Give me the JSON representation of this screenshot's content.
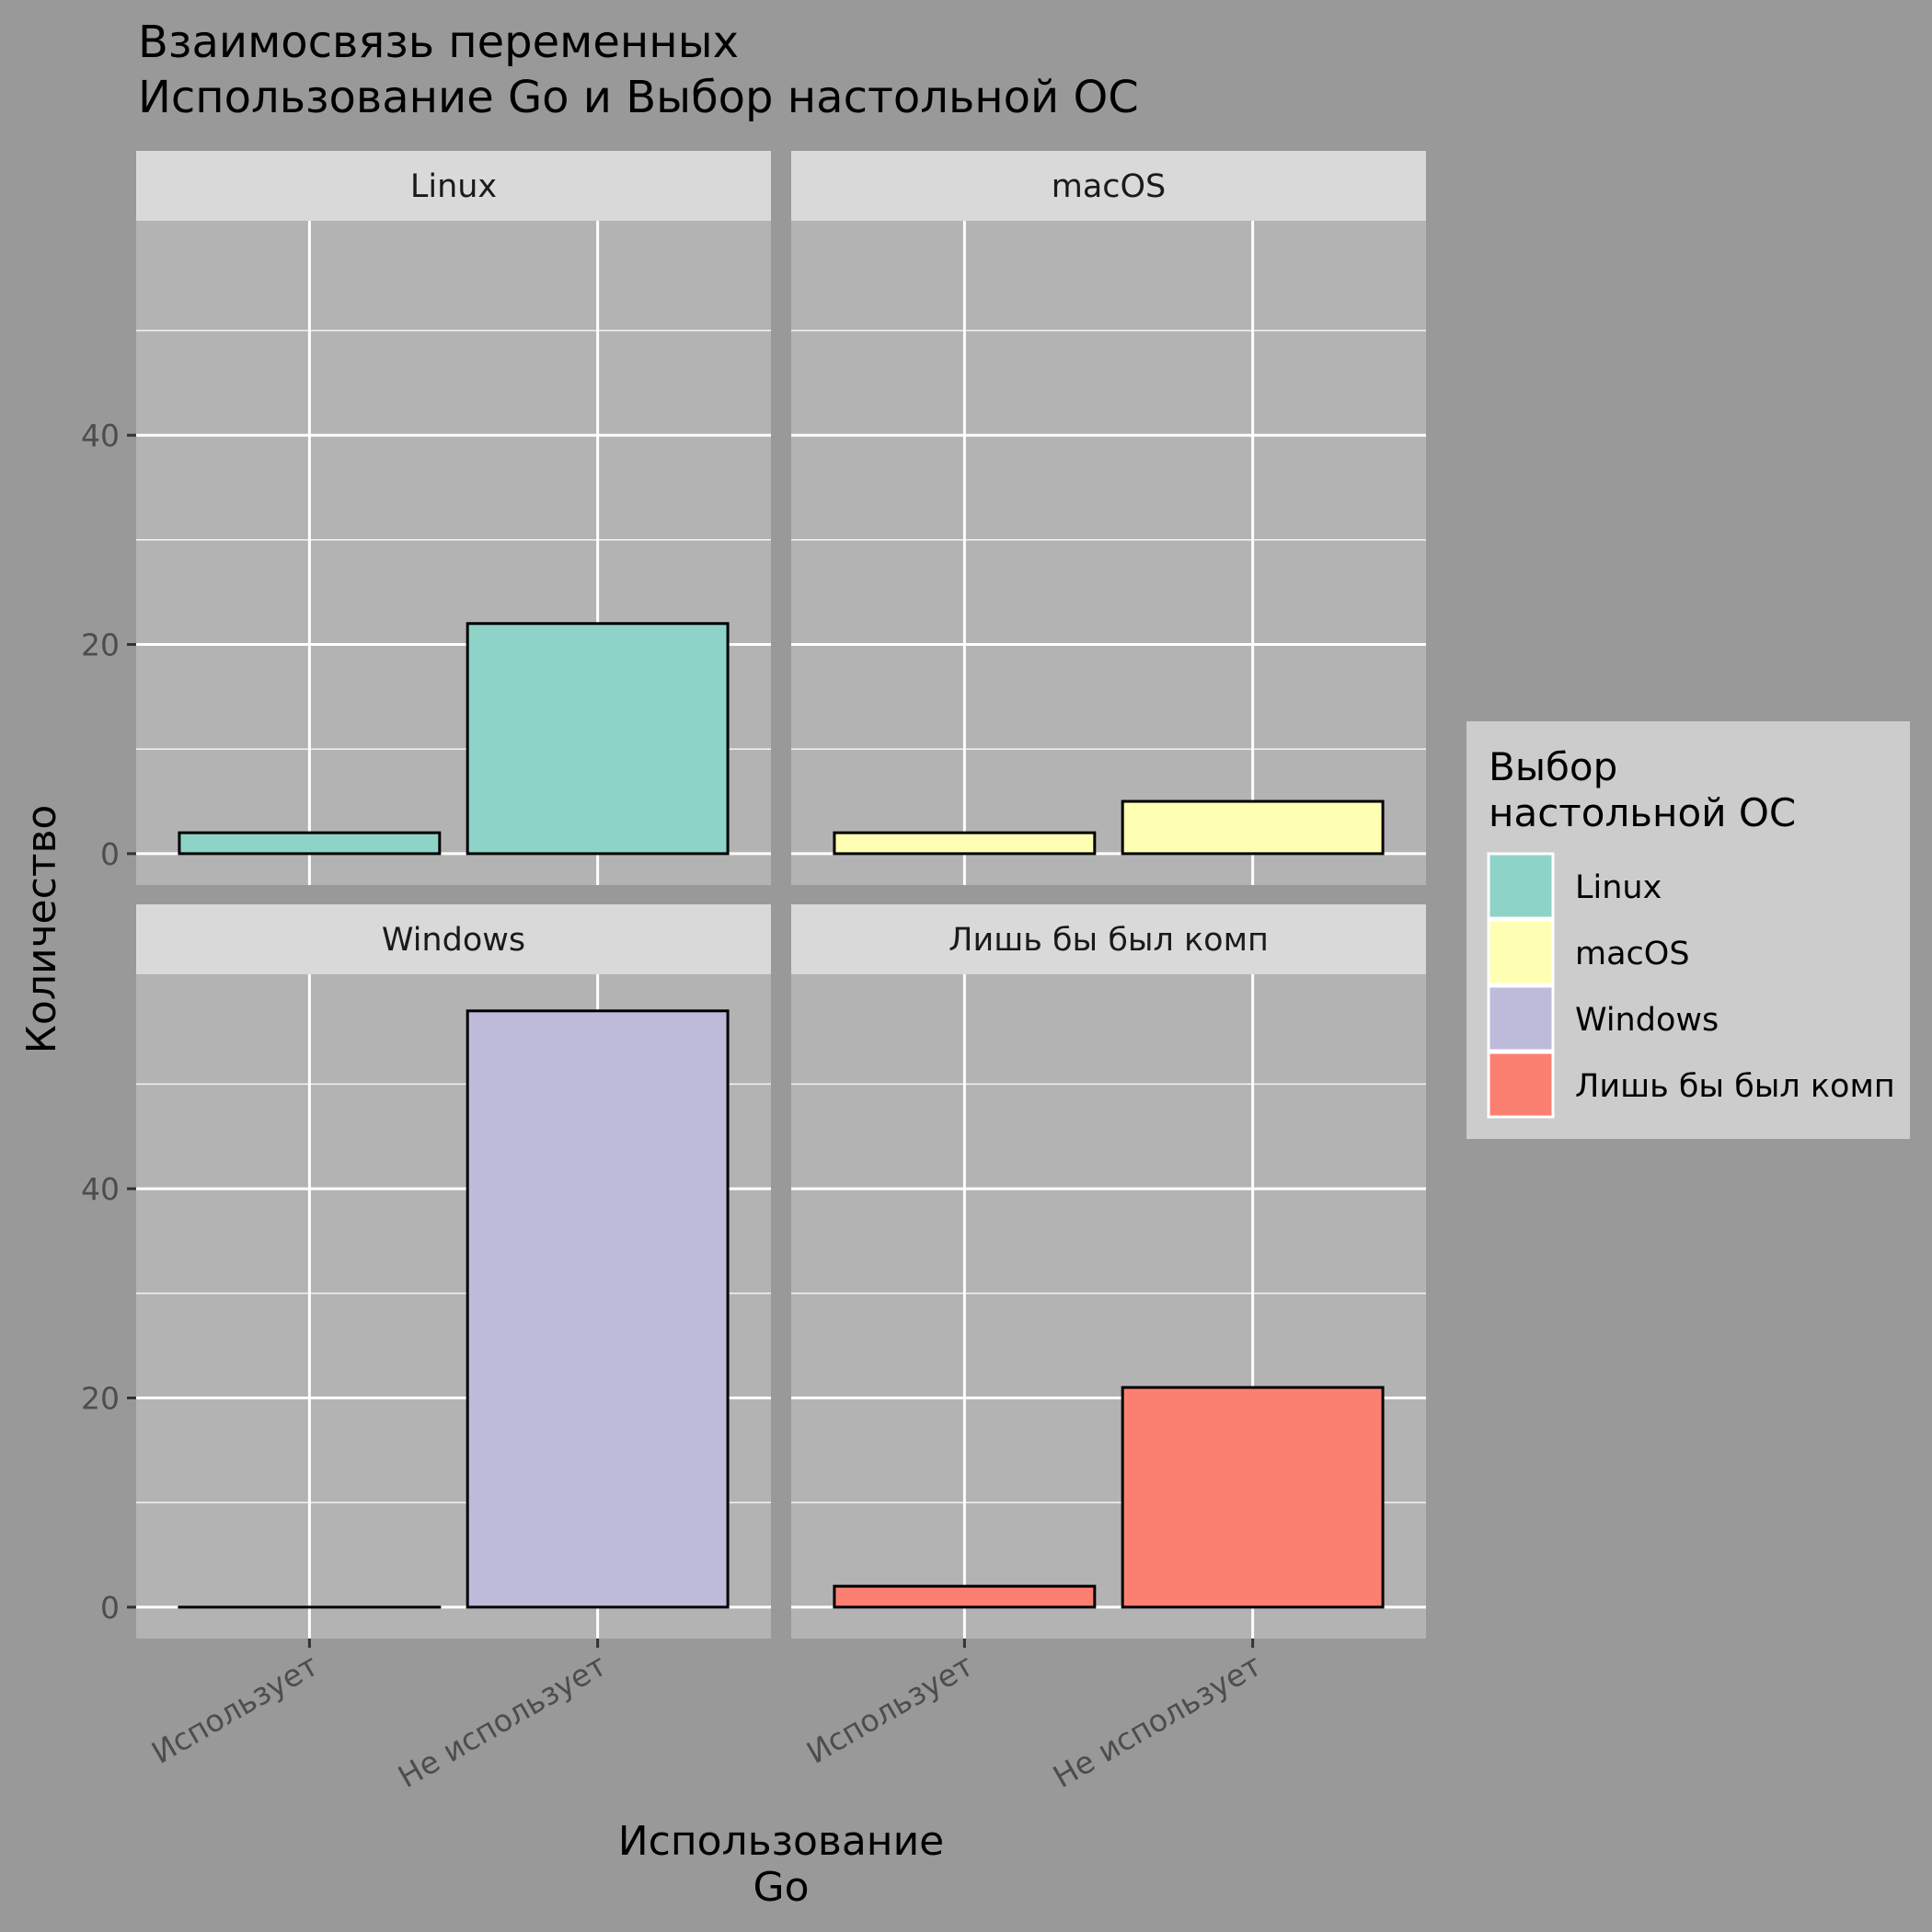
{
  "chart_data": {
    "type": "bar",
    "title_lines": [
      "Взаимосвязь переменных",
      " Использование Go и Выбор настольной ОС"
    ],
    "xlabel_lines": [
      "Использование",
      "Go"
    ],
    "ylabel": "Количество",
    "categories": [
      "Использует",
      "Не использует"
    ],
    "yticks": [
      0,
      20,
      40
    ],
    "ylim": [
      -3,
      60.5
    ],
    "grid": true,
    "legend": {
      "title_lines": [
        "Выбор",
        "настольной ОС"
      ],
      "placement": "right",
      "items": [
        {
          "label": "Linux",
          "color": "#8DD3C7"
        },
        {
          "label": "macOS",
          "color": "#FFFFB3"
        },
        {
          "label": "Windows",
          "color": "#BEBADA"
        },
        {
          "label": "Лишь бы был комп",
          "color": "#FB8072"
        }
      ]
    },
    "facets": [
      {
        "label": "Linux",
        "color": "#8DD3C7",
        "values": [
          2,
          22
        ]
      },
      {
        "label": "macOS",
        "color": "#FFFFB3",
        "values": [
          2,
          5
        ]
      },
      {
        "label": "Windows",
        "color": "#BEBADA",
        "values": [
          0,
          57
        ]
      },
      {
        "label": "Лишь бы был комп",
        "color": "#FB8072",
        "values": [
          2,
          21
        ]
      }
    ]
  }
}
